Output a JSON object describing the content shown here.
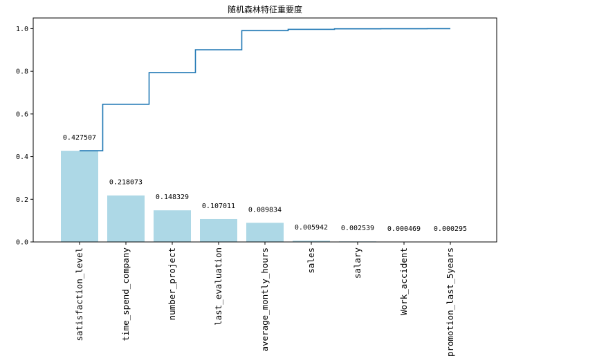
{
  "chart_data": {
    "type": "bar",
    "title": "随机森林特征重要度",
    "categories": [
      "satisfaction_level",
      "time_spend_company",
      "number_project",
      "last_evaluation",
      "average_montly_hours",
      "sales",
      "salary",
      "Work_accident",
      "promotion_last_5years"
    ],
    "values": [
      0.427507,
      0.218073,
      0.148329,
      0.107011,
      0.089834,
      0.005942,
      0.002539,
      0.000469,
      0.000295
    ],
    "data_labels": [
      "0.427507",
      "0.218073",
      "0.148329",
      "0.107011",
      "0.089834",
      "0.005942",
      "0.002539",
      "0.000469",
      "0.000295"
    ],
    "cumulative_line": {
      "type": "step",
      "values": [
        0.427507,
        0.64558,
        0.793909,
        0.90092,
        0.990754,
        0.996696,
        0.999235,
        0.999704,
        0.999999
      ]
    },
    "yticks": [
      "0.0",
      "0.2",
      "0.4",
      "0.6",
      "0.8",
      "1.0"
    ],
    "ylim": [
      0,
      1.05
    ],
    "xlabel": "",
    "ylabel": "",
    "grid": false,
    "colors": {
      "bar": "#add8e6",
      "line": "#1f77b4"
    }
  }
}
